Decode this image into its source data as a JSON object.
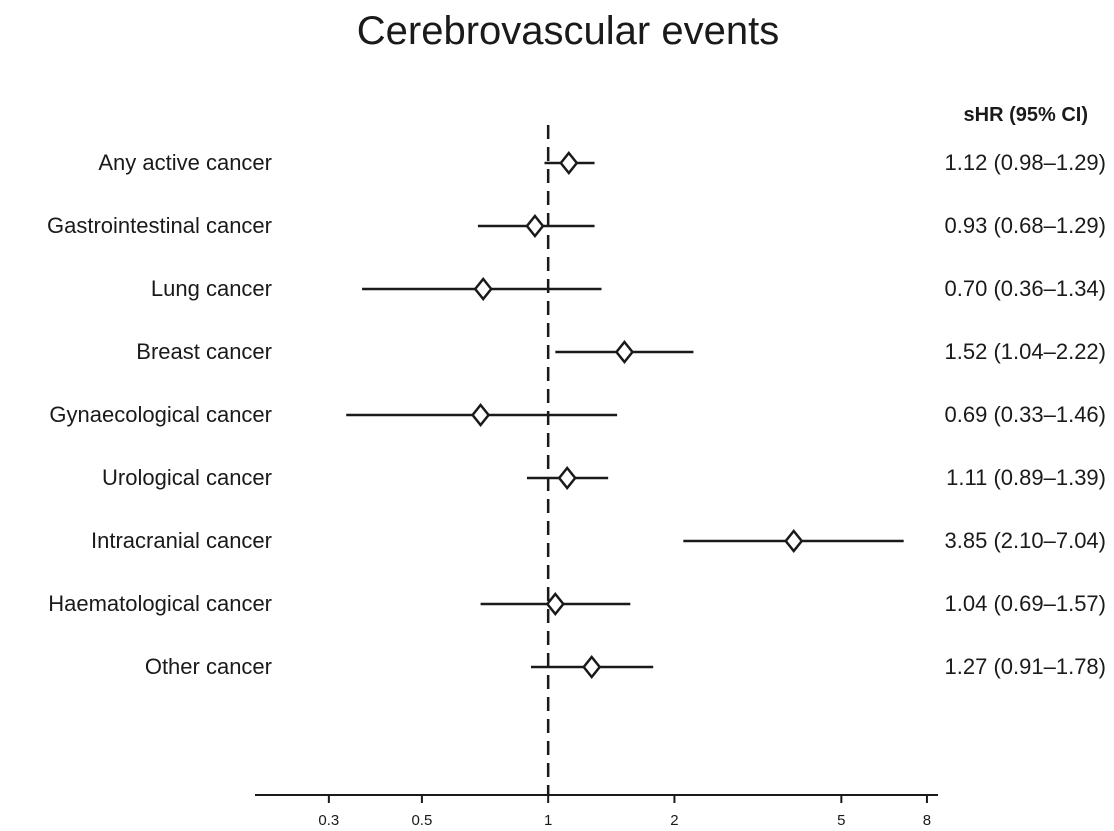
{
  "chart_data": {
    "type": "forest",
    "title": "Cerebrovascular events",
    "estimate_header": "sHR (95% CI)",
    "x_scale": "log",
    "xlim": [
      0.2,
      8.5
    ],
    "x_ticks": [
      0.3,
      0.5,
      1,
      2,
      5,
      8
    ],
    "x_tick_labels": [
      "0.3",
      "0.5",
      "1",
      "2",
      "5",
      "8"
    ],
    "reference_line": 1,
    "rows": [
      {
        "label": "Any active cancer",
        "estimate": 1.12,
        "lower": 0.98,
        "upper": 1.29,
        "text": "1.12 (0.98–1.29)"
      },
      {
        "label": "Gastrointestinal cancer",
        "estimate": 0.93,
        "lower": 0.68,
        "upper": 1.29,
        "text": "0.93 (0.68–1.29)"
      },
      {
        "label": "Lung cancer",
        "estimate": 0.7,
        "lower": 0.36,
        "upper": 1.34,
        "text": "0.70 (0.36–1.34)"
      },
      {
        "label": "Breast cancer",
        "estimate": 1.52,
        "lower": 1.04,
        "upper": 2.22,
        "text": "1.52 (1.04–2.22)"
      },
      {
        "label": "Gynaecological cancer",
        "estimate": 0.69,
        "lower": 0.33,
        "upper": 1.46,
        "text": "0.69 (0.33–1.46)"
      },
      {
        "label": "Urological cancer",
        "estimate": 1.11,
        "lower": 0.89,
        "upper": 1.39,
        "text": "1.11 (0.89–1.39)"
      },
      {
        "label": "Intracranial cancer",
        "estimate": 3.85,
        "lower": 2.1,
        "upper": 7.04,
        "text": "3.85 (2.10–7.04)"
      },
      {
        "label": "Haematological cancer",
        "estimate": 1.04,
        "lower": 0.69,
        "upper": 1.57,
        "text": "1.04 (0.69–1.57)"
      },
      {
        "label": "Other cancer",
        "estimate": 1.27,
        "lower": 0.91,
        "upper": 1.78,
        "text": "1.27 (0.91–1.78)"
      }
    ],
    "colors": {
      "ink": "#1a1a1a",
      "background": "#ffffff"
    },
    "grid": false,
    "marker": "diamond"
  }
}
